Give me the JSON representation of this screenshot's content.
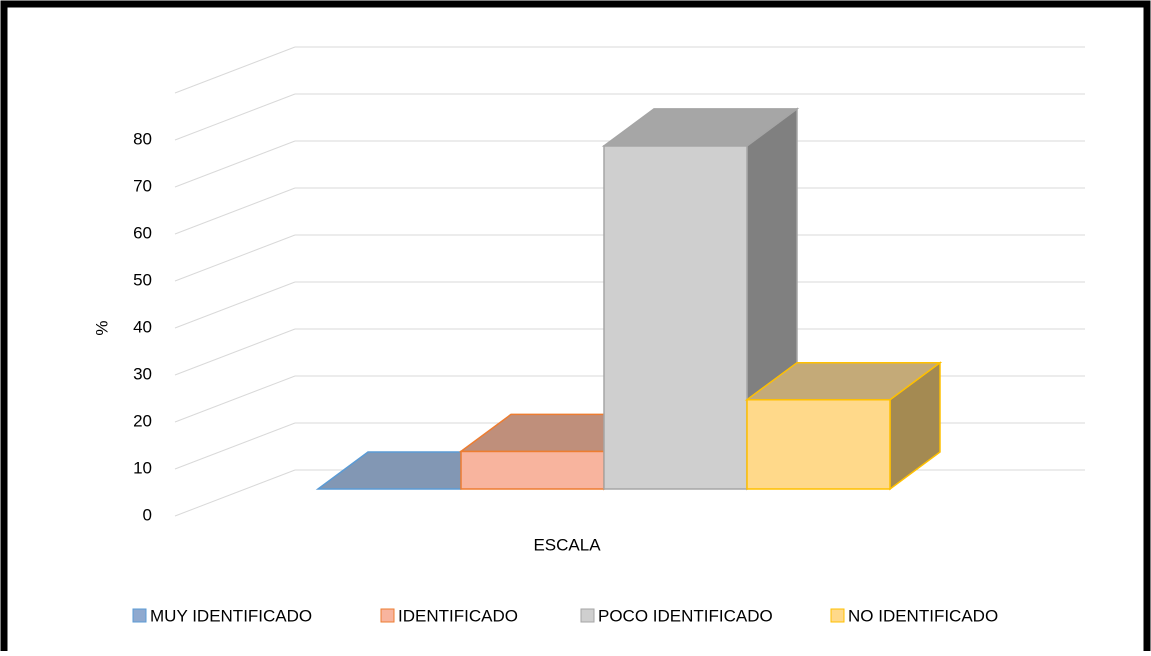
{
  "chart_data": {
    "type": "bar3d",
    "x_label": "ESCALA",
    "y_label": "%",
    "categories": [
      "MUY IDENTIFICADO",
      "IDENTIFICADO",
      "POCO IDENTIFICADO",
      "NO IDENTIFICADO"
    ],
    "values": [
      0,
      8,
      73,
      19
    ],
    "colors": [
      {
        "front": "#8fa9cf",
        "top": "#8297b4",
        "side": "#6d83a3",
        "edge": "#5b9bd5"
      },
      {
        "front": "#f8b49e",
        "top": "#bf8f7b",
        "side": "#a0705d",
        "edge": "#ed7d31"
      },
      {
        "front": "#cfcfcf",
        "top": "#a6a6a6",
        "side": "#808080",
        "edge": "#a5a5a5"
      },
      {
        "front": "#ffd98a",
        "top": "#c4aa78",
        "side": "#a48a52",
        "edge": "#ffc000"
      }
    ],
    "ylim": [
      0,
      90
    ],
    "yticks": [
      0,
      10,
      20,
      30,
      40,
      50,
      60,
      70,
      80
    ],
    "grid": true,
    "legend": "bottom"
  }
}
